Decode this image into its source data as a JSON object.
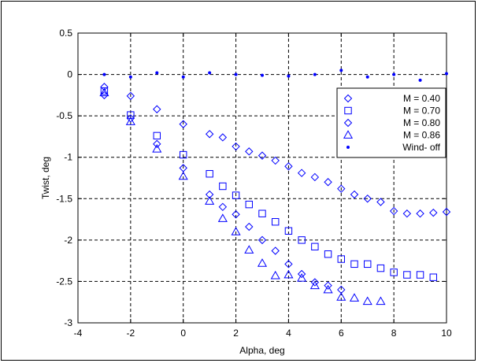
{
  "chart_data": {
    "type": "scatter",
    "title": "",
    "xlabel": "Alpha, deg",
    "ylabel": "Twist, deg",
    "xlim": [
      -4,
      10
    ],
    "ylim": [
      -3,
      0.5
    ],
    "xticks": [
      -4,
      -2,
      0,
      2,
      4,
      6,
      8,
      10
    ],
    "yticks": [
      0.5,
      0,
      -0.5,
      -1,
      -1.5,
      -2,
      -2.5,
      -3
    ],
    "xtick_labels": [
      "-4",
      "-2",
      "0",
      "2",
      "4",
      "6",
      "8",
      "10"
    ],
    "ytick_labels": [
      "0.5",
      "0",
      "-0.5",
      "-1",
      "-1.5",
      "-2",
      "-2.5",
      "-3"
    ],
    "grid": true,
    "legend_position": "top-right",
    "marker_color": "#0000ff",
    "series": [
      {
        "name": "M = 0.40",
        "marker": "diamond",
        "points": [
          [
            -3,
            -0.15
          ],
          [
            -2,
            -0.26
          ],
          [
            -1,
            -0.42
          ],
          [
            0,
            -0.6
          ],
          [
            1,
            -0.72
          ],
          [
            1.5,
            -0.76
          ],
          [
            2,
            -0.87
          ],
          [
            2.5,
            -0.93
          ],
          [
            3,
            -0.98
          ],
          [
            3.5,
            -1.04
          ],
          [
            4,
            -1.11
          ],
          [
            4.5,
            -1.19
          ],
          [
            5,
            -1.24
          ],
          [
            5.5,
            -1.3
          ],
          [
            6,
            -1.38
          ],
          [
            6.5,
            -1.45
          ],
          [
            7,
            -1.5
          ],
          [
            7.5,
            -1.54
          ],
          [
            8,
            -1.65
          ],
          [
            8.5,
            -1.68
          ],
          [
            9,
            -1.68
          ],
          [
            9.5,
            -1.67
          ],
          [
            10,
            -1.66
          ]
        ]
      },
      {
        "name": "M = 0.70",
        "marker": "square",
        "points": [
          [
            -3,
            -0.2
          ],
          [
            -2,
            -0.49
          ],
          [
            -1,
            -0.74
          ],
          [
            0,
            -0.97
          ],
          [
            1,
            -1.2
          ],
          [
            1.5,
            -1.35
          ],
          [
            2,
            -1.46
          ],
          [
            2.5,
            -1.57
          ],
          [
            3,
            -1.68
          ],
          [
            3.5,
            -1.78
          ],
          [
            4,
            -1.89
          ],
          [
            4.5,
            -2.0
          ],
          [
            5,
            -2.08
          ],
          [
            5.5,
            -2.17
          ],
          [
            6,
            -2.23
          ],
          [
            6.5,
            -2.29
          ],
          [
            7,
            -2.29
          ],
          [
            7.5,
            -2.34
          ],
          [
            8,
            -2.39
          ],
          [
            8.5,
            -2.42
          ],
          [
            9,
            -2.42
          ],
          [
            9.5,
            -2.45
          ]
        ]
      },
      {
        "name": "M = 0.80",
        "marker": "diamond",
        "points": [
          [
            -3,
            -0.25
          ],
          [
            -2,
            -0.53
          ],
          [
            -1,
            -0.84
          ],
          [
            0,
            -1.13
          ],
          [
            1,
            -1.45
          ],
          [
            1.5,
            -1.6
          ],
          [
            2,
            -1.69
          ],
          [
            2.5,
            -1.84
          ],
          [
            3,
            -2.0
          ],
          [
            3.5,
            -2.13
          ],
          [
            4,
            -2.29
          ],
          [
            4.5,
            -2.41
          ],
          [
            5,
            -2.51
          ],
          [
            5.5,
            -2.55
          ],
          [
            6,
            -2.6
          ]
        ]
      },
      {
        "name": "M = 0.86",
        "marker": "triangle",
        "points": [
          [
            -3,
            -0.22
          ],
          [
            -2,
            -0.57
          ],
          [
            -1,
            -0.9
          ],
          [
            0,
            -1.23
          ],
          [
            1,
            -1.53
          ],
          [
            1.5,
            -1.74
          ],
          [
            2,
            -1.9
          ],
          [
            2.5,
            -2.12
          ],
          [
            3,
            -2.28
          ],
          [
            3.5,
            -2.43
          ],
          [
            4,
            -2.42
          ],
          [
            4.5,
            -2.46
          ],
          [
            5,
            -2.55
          ],
          [
            5.5,
            -2.6
          ],
          [
            6,
            -2.69
          ],
          [
            6.5,
            -2.7
          ],
          [
            7,
            -2.74
          ],
          [
            7.5,
            -2.74
          ]
        ]
      },
      {
        "name": "Wind- off",
        "marker": "dot",
        "points": [
          [
            -3,
            0.0
          ],
          [
            -2,
            -0.03
          ],
          [
            -1,
            0.02
          ],
          [
            0,
            -0.03
          ],
          [
            1,
            0.02
          ],
          [
            2,
            0.0
          ],
          [
            3,
            -0.01
          ],
          [
            4,
            -0.02
          ],
          [
            5,
            0.0
          ],
          [
            6,
            0.05
          ],
          [
            7,
            -0.03
          ],
          [
            8,
            0.0
          ],
          [
            9,
            -0.07
          ],
          [
            10,
            0.01
          ]
        ]
      }
    ]
  }
}
